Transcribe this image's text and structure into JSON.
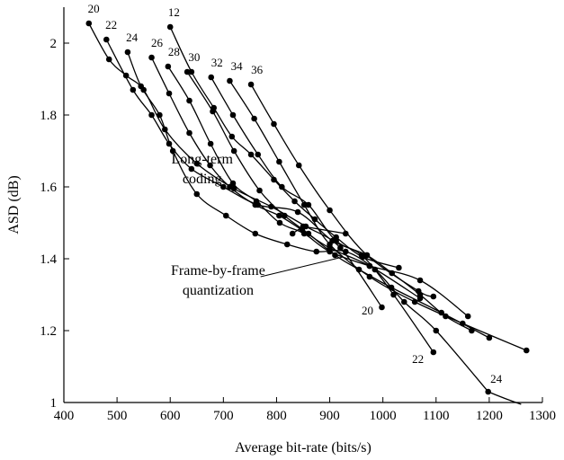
{
  "chart_data": {
    "type": "line",
    "xlabel": "Average bit-rate (bits/s)",
    "ylabel": "ASD (dB)",
    "xlim": [
      400,
      1300
    ],
    "ylim": [
      1,
      2.1
    ],
    "xticks": [
      400,
      500,
      600,
      700,
      800,
      900,
      1000,
      1100,
      1200,
      1300
    ],
    "yticks": [
      1,
      1.2,
      1.4,
      1.6,
      1.8,
      2
    ],
    "ytick_labels": [
      "1",
      "1.2",
      "1.4",
      "1.6",
      "1.8",
      "2"
    ],
    "grid": false,
    "frame_by_frame": [
      {
        "label": "20",
        "x": [
          998,
          920,
          855,
          790,
          720,
          650,
          590,
          550,
          517,
          485,
          447
        ],
        "y": [
          1.265,
          1.43,
          1.49,
          1.545,
          1.595,
          1.665,
          1.76,
          1.87,
          1.91,
          1.955,
          2.055
        ]
      },
      {
        "label": "22",
        "x": [
          1095,
          1020,
          960,
          905,
          840,
          765,
          700,
          640,
          598,
          565,
          530,
          480
        ],
        "y": [
          1.14,
          1.3,
          1.41,
          1.45,
          1.53,
          1.55,
          1.6,
          1.65,
          1.72,
          1.8,
          1.87,
          2.01
        ]
      },
      {
        "label": "24",
        "x": [
          1198,
          1100,
          1040,
          985,
          930,
          875,
          820,
          760,
          705,
          650,
          605,
          580,
          545,
          520
        ],
        "y": [
          1.03,
          1.2,
          1.28,
          1.37,
          1.42,
          1.42,
          1.44,
          1.47,
          1.52,
          1.58,
          1.7,
          1.8,
          1.88,
          1.975
        ]
      }
    ],
    "long_term": [
      {
        "label": "12",
        "x": [
          600,
          640,
          682,
          716,
          752,
          795,
          834,
          872,
          912,
          962,
          1030
        ],
        "y": [
          2.045,
          1.92,
          1.82,
          1.74,
          1.69,
          1.62,
          1.56,
          1.51,
          1.46,
          1.405,
          1.375
        ]
      },
      {
        "label": "26",
        "x": [
          565,
          598,
          636,
          675,
          712,
          760,
          805,
          848,
          900,
          975,
          1070
        ],
        "y": [
          1.96,
          1.86,
          1.75,
          1.66,
          1.6,
          1.55,
          1.52,
          1.48,
          1.43,
          1.38,
          1.29
        ]
      },
      {
        "label": "28",
        "x": [
          596,
          636,
          676,
          718,
          762,
          806,
          852,
          900,
          975,
          1070,
          1160
        ],
        "y": [
          1.935,
          1.84,
          1.72,
          1.61,
          1.56,
          1.5,
          1.47,
          1.42,
          1.38,
          1.34,
          1.24
        ]
      },
      {
        "label": "30",
        "x": [
          632,
          680,
          720,
          768,
          815,
          860,
          910,
          955,
          1016,
          1110,
          1200
        ],
        "y": [
          1.92,
          1.81,
          1.7,
          1.59,
          1.52,
          1.47,
          1.41,
          1.37,
          1.32,
          1.25,
          1.18
        ]
      },
      {
        "label": "32",
        "x": [
          677,
          718,
          765,
          810,
          860,
          912,
          970,
          1017,
          1070,
          1118,
          1167
        ],
        "y": [
          1.905,
          1.8,
          1.69,
          1.6,
          1.55,
          1.45,
          1.41,
          1.36,
          1.3,
          1.24,
          1.2
        ]
      },
      {
        "label": "34",
        "x": [
          712,
          758,
          805,
          852,
          900,
          975,
          1060,
          1150,
          1270
        ],
        "y": [
          1.895,
          1.79,
          1.67,
          1.55,
          1.44,
          1.35,
          1.28,
          1.22,
          1.145
        ]
      },
      {
        "label": "36",
        "x": [
          752,
          795,
          842,
          900,
          970,
          1067,
          1095
        ],
        "y": [
          1.885,
          1.775,
          1.66,
          1.535,
          1.41,
          1.31,
          1.295
        ]
      }
    ],
    "extra_lines": [
      {
        "x": [
          830,
          850,
          930
        ],
        "y": [
          1.47,
          1.49,
          1.47
        ]
      }
    ],
    "curve_label_positions": [
      {
        "text": "20",
        "x": 445,
        "y": 2.085
      },
      {
        "text": "22",
        "x": 478,
        "y": 2.04
      },
      {
        "text": "24",
        "x": 517,
        "y": 2.005
      },
      {
        "text": "26",
        "x": 564,
        "y": 1.99
      },
      {
        "text": "28",
        "x": 596,
        "y": 1.965
      },
      {
        "text": "30",
        "x": 634,
        "y": 1.95
      },
      {
        "text": "12",
        "x": 596,
        "y": 2.075
      },
      {
        "text": "32",
        "x": 677,
        "y": 1.935
      },
      {
        "text": "34",
        "x": 714,
        "y": 1.925
      },
      {
        "text": "36",
        "x": 752,
        "y": 1.915
      },
      {
        "text": "20",
        "x": 960,
        "y": 1.245
      },
      {
        "text": "22",
        "x": 1055,
        "y": 1.11
      },
      {
        "text": "24",
        "x": 1202,
        "y": 1.055
      }
    ],
    "annotations": [
      {
        "lines": [
          "Long-term",
          "coding"
        ],
        "x": 660,
        "y": 1.665,
        "pointer": null
      },
      {
        "lines": [
          "Frame-by-frame",
          "quantization"
        ],
        "x": 690,
        "y": 1.355,
        "pointer": {
          "from": [
            770,
            1.35
          ],
          "to": [
            925,
            1.405
          ]
        }
      }
    ]
  }
}
